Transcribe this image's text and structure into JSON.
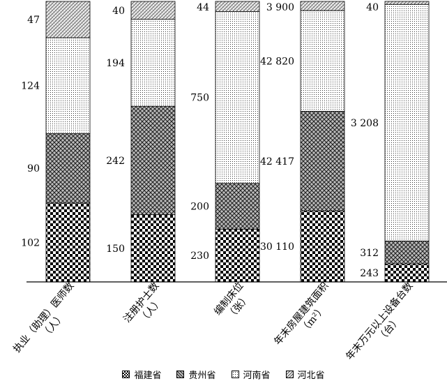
{
  "chart_data": {
    "type": "bar",
    "stacked": "percent",
    "categories": [
      "执业（助理）医师数（人）",
      "注册护士数（人）",
      "编制床位（张）",
      "年末房屋建筑面积（m²）",
      "年末万元以上设备台数（台）"
    ],
    "category_lines": [
      [
        "执业（助理）医师数",
        "（人）"
      ],
      [
        "注册护士数",
        "（人）"
      ],
      [
        "编制床位",
        "（张）"
      ],
      [
        "年末房屋建筑面积",
        "（m²）"
      ],
      [
        "年末万元以上设备台数",
        "（台）"
      ]
    ],
    "series": [
      {
        "name": "福建省",
        "values": [
          102,
          150,
          230,
          30110,
          243
        ],
        "labels": [
          "102",
          "150",
          "230",
          "30 110",
          "243"
        ],
        "pattern": "checker"
      },
      {
        "name": "贵州省",
        "values": [
          90,
          242,
          200,
          42417,
          312
        ],
        "labels": [
          "90",
          "242",
          "200",
          "42 417",
          "312"
        ],
        "pattern": "crosshatch"
      },
      {
        "name": "河南省",
        "values": [
          124,
          194,
          750,
          42820,
          3208
        ],
        "labels": [
          "124",
          "194",
          "750",
          "42 820",
          "3 208"
        ],
        "pattern": "dots"
      },
      {
        "name": "河北省",
        "values": [
          47,
          40,
          44,
          3900,
          40
        ],
        "labels": [
          "47",
          "40",
          "44",
          "3 900",
          "40"
        ],
        "pattern": "diagonal"
      }
    ],
    "legend_position": "bottom",
    "grid": false
  }
}
